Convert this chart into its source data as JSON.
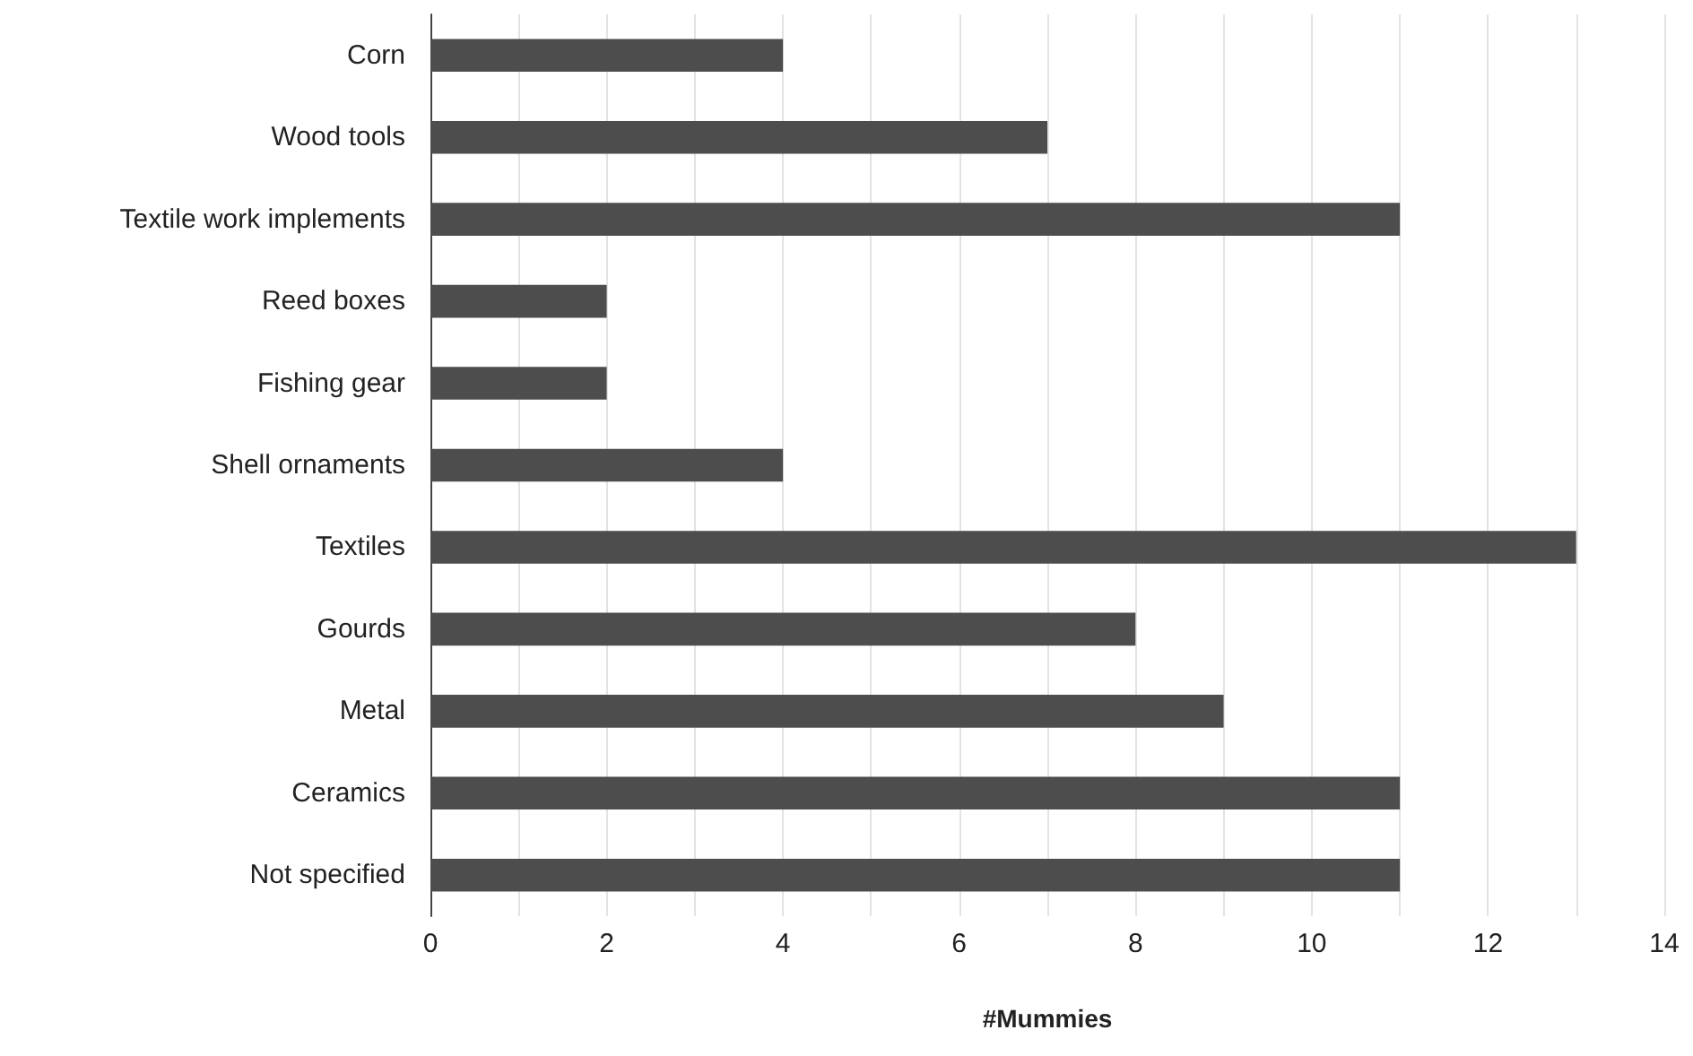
{
  "chart_data": {
    "type": "bar",
    "orientation": "horizontal",
    "xlabel": "#Mummies",
    "categories": [
      "Corn",
      "Wood tools",
      "Textile work implements",
      "Reed boxes",
      "Fishing gear",
      "Shell ornaments",
      "Textiles",
      "Gourds",
      "Metal",
      "Ceramics",
      "Not specified"
    ],
    "values": [
      4,
      7,
      11,
      2,
      2,
      4,
      13,
      8,
      9,
      11,
      11
    ],
    "color": "#4d4d4d",
    "xlim": [
      0,
      14
    ],
    "xticks": [
      0,
      {
        "value": 1,
        "label": null
      },
      2,
      {
        "value": 3,
        "label": null
      },
      4,
      {
        "value": 5,
        "label": null
      },
      6,
      {
        "value": 7,
        "label": null
      },
      8,
      {
        "value": 9,
        "label": null
      },
      10,
      {
        "value": 11,
        "label": null
      },
      12,
      {
        "value": 13,
        "label": null
      },
      14
    ],
    "grid": "x"
  }
}
